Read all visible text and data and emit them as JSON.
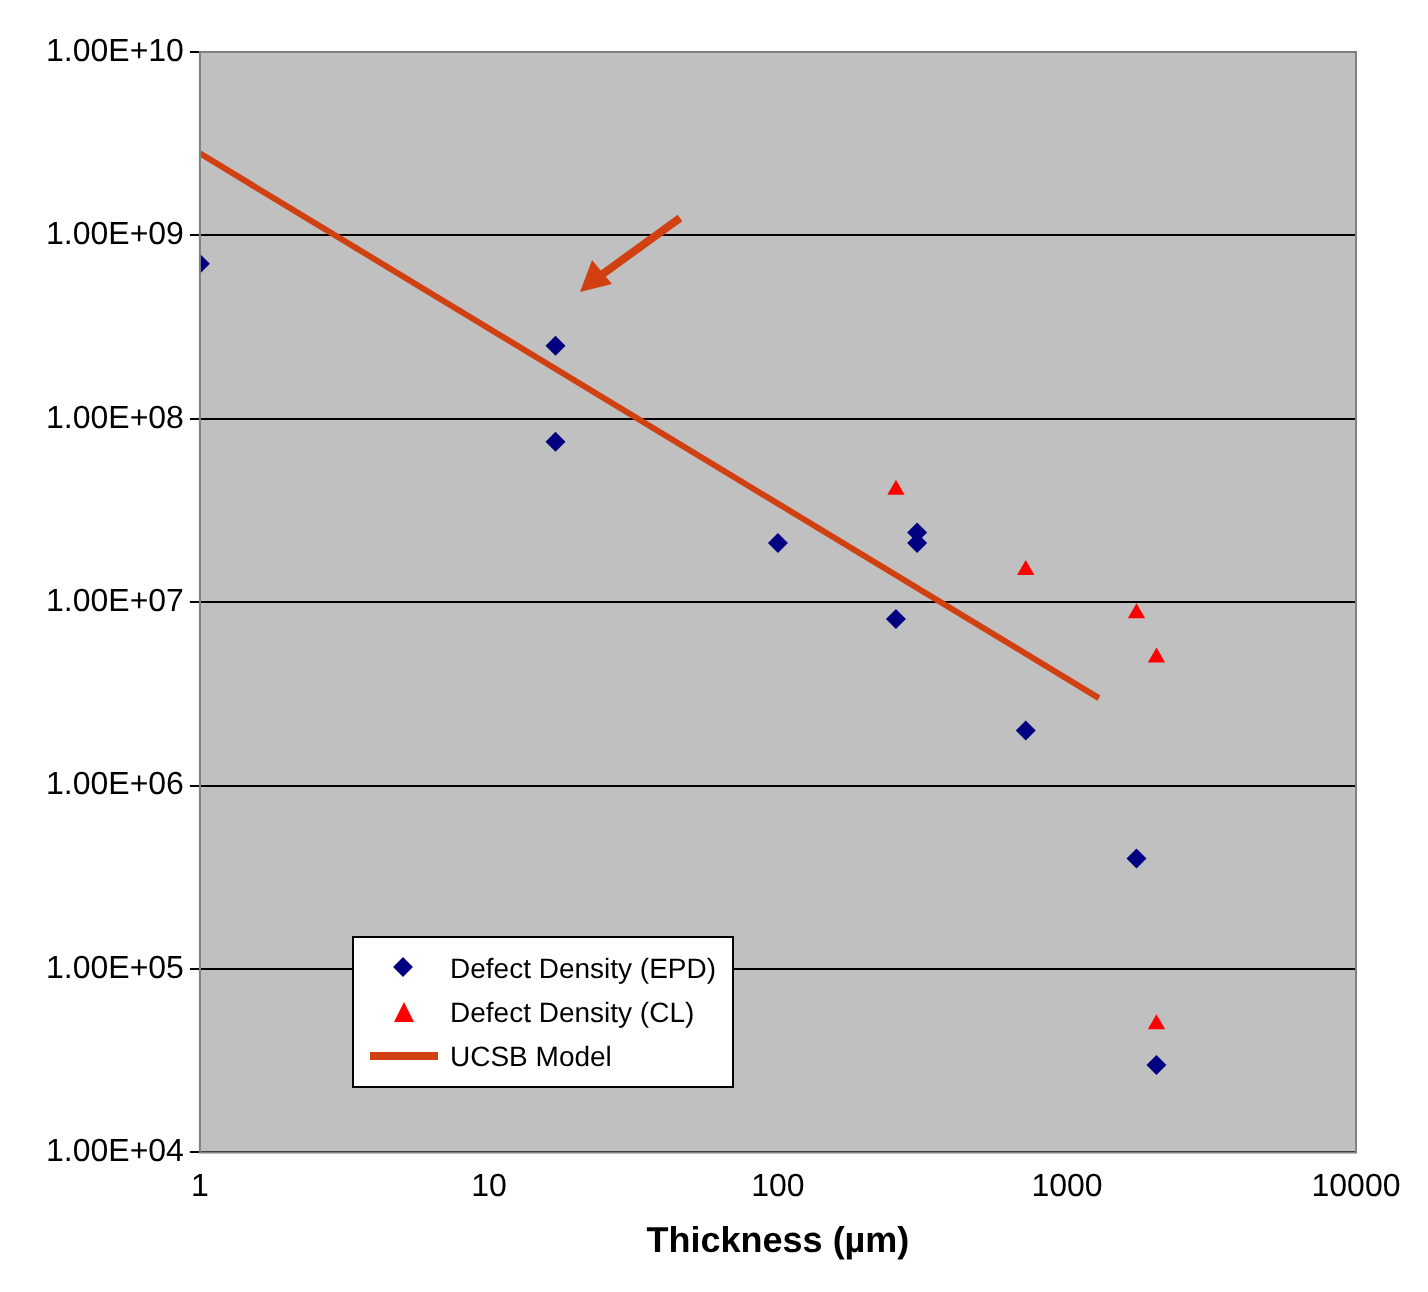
{
  "chart_data": {
    "type": "scatter",
    "xlabel": "Thickness (µm)",
    "log": "xy",
    "grid": "y",
    "legend": "bottom left",
    "xlim": [
      1,
      10000
    ],
    "xticks": [
      1,
      10,
      100,
      1000,
      10000
    ],
    "ylim": [
      10000,
      10000000000
    ],
    "yticks": [
      {
        "value": 10000,
        "label": "1.00E+04"
      },
      {
        "value": 100000,
        "label": "1.00E+05"
      },
      {
        "value": 1000000,
        "label": "1.00E+06"
      },
      {
        "value": 10000000,
        "label": "1.00E+07"
      },
      {
        "value": 100000000,
        "label": "1.00E+08"
      },
      {
        "value": 1000000000,
        "label": "1.00E+09"
      },
      {
        "value": 10000000000,
        "label": "1.00E+10"
      }
    ],
    "series": [
      {
        "name": "Defect Density (EPD)",
        "type": "scatter",
        "marker": "diamond",
        "color": "#000080",
        "x": [
          1,
          17,
          17,
          100,
          256,
          303,
          303,
          720,
          1740,
          2040
        ],
        "values": [
          700000000,
          250000000,
          75000000,
          21000000,
          8100000,
          24000000,
          21000000,
          2000000,
          400000,
          30000
        ]
      },
      {
        "name": "Defect Density (CL)",
        "type": "scatter",
        "marker": "triangle",
        "color": "#ff0000",
        "x": [
          256,
          720,
          1740,
          2040,
          2040
        ],
        "values": [
          41000000,
          15000000,
          8700000,
          5000000,
          50000
        ]
      },
      {
        "name": "UCSB Model",
        "type": "line",
        "marker": "none",
        "line_style": "solid",
        "color": "#d04010",
        "x": [
          1,
          1290
        ],
        "values": [
          2800000000,
          3000000
        ]
      }
    ]
  }
}
